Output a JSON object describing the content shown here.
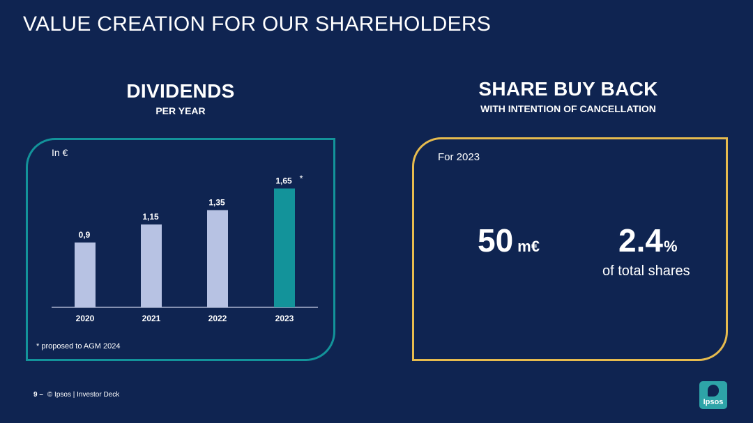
{
  "slide": {
    "title": "VALUE CREATION FOR OUR SHAREHOLDERS",
    "footer_page": "9 –",
    "footer_text": "© Ipsos | Investor Deck",
    "logo_text": "Ipsos"
  },
  "dividends": {
    "heading": "DIVIDENDS",
    "subheading": "PER YEAR",
    "unit_label": "In €",
    "footnote": "* proposed to AGM 2024"
  },
  "buyback": {
    "heading": "SHARE BUY BACK",
    "subheading": "WITH INTENTION OF CANCELLATION",
    "period_label": "For 2023",
    "amount_value": "50",
    "amount_unit": "m€",
    "pct_value": "2.4",
    "pct_unit": "%",
    "pct_caption": "of total shares"
  },
  "colors": {
    "background": "#0f2451",
    "bar_default": "#b7c2e3",
    "bar_highlight": "#13939a",
    "dividends_frame": "#13939a",
    "buyback_frame": "#e6bb4e"
  },
  "chart_data": {
    "type": "bar",
    "categories": [
      "2020",
      "2021",
      "2022",
      "2023"
    ],
    "values": [
      0.9,
      1.15,
      1.35,
      1.65
    ],
    "value_labels": [
      "0,9",
      "1,15",
      "1,35",
      "1,65"
    ],
    "highlight_index": 3,
    "highlight_marker": "*",
    "ylim": [
      0,
      1.8
    ],
    "grid": false,
    "xlabel": "",
    "ylabel": ""
  }
}
